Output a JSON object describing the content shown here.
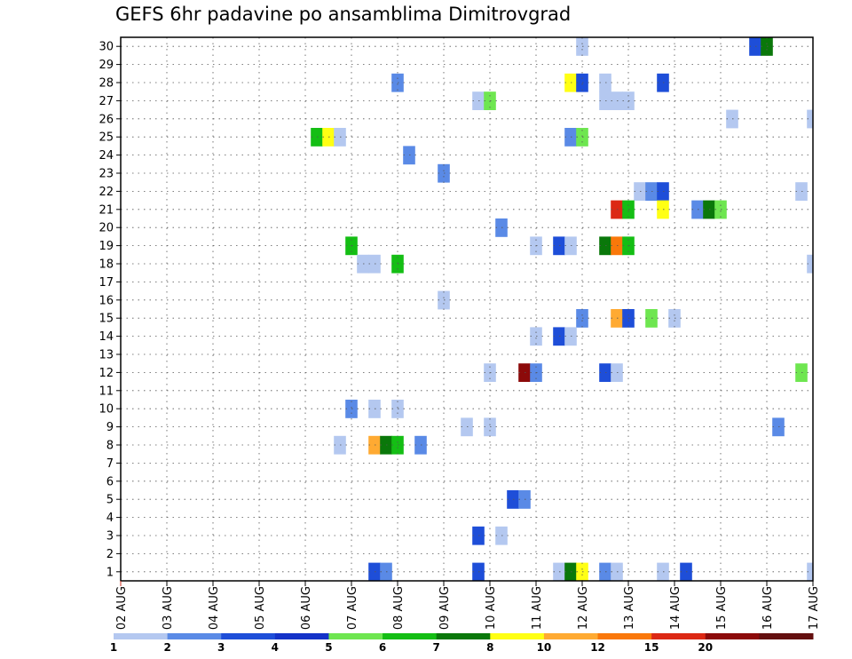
{
  "chart_data": {
    "type": "heatmap",
    "title": "GEFS 6hr padavine po ansamblima Dimitrovgrad",
    "xlabel": "",
    "ylabel": "",
    "x_ticks": [
      "02 AUG",
      "03 AUG",
      "04 AUG",
      "05 AUG",
      "06 AUG",
      "07 AUG",
      "08 AUG",
      "09 AUG",
      "10 AUG",
      "11 AUG",
      "12 AUG",
      "13 AUG",
      "14 AUG",
      "15 AUG",
      "16 AUG",
      "17 AUG"
    ],
    "x_start": "2023-08-02T00",
    "x_end": "2023-08-17T00",
    "y_ticks": [
      "1",
      "2",
      "3",
      "4",
      "5",
      "6",
      "7",
      "8",
      "9",
      "10",
      "11",
      "12",
      "13",
      "14",
      "15",
      "16",
      "17",
      "18",
      "19",
      "20",
      "21",
      "22",
      "23",
      "24",
      "25",
      "26",
      "27",
      "28",
      "29",
      "30"
    ],
    "ylim": [
      1,
      30
    ],
    "grid": true,
    "legend": {
      "placement": "bottom",
      "labels": [
        "1",
        "2",
        "3",
        "4",
        "5",
        "6",
        "7",
        "8",
        "10",
        "12",
        "15",
        "20"
      ],
      "colors": [
        "#b4c8f0",
        "#5a8ae6",
        "#1e4ed8",
        "#1432c8",
        "#6ee650",
        "#14be14",
        "#0a780a",
        "#ffff14",
        "#ffaa32",
        "#fa780a",
        "#dc2814",
        "#8c0a0a",
        "#641010"
      ]
    },
    "cells": [
      {
        "member": 30,
        "time": "2023-08-12T00",
        "color": "#b4c8f0"
      },
      {
        "member": 30,
        "time": "2023-08-15T18",
        "color": "#1e4ed8"
      },
      {
        "member": 30,
        "time": "2023-08-16T00",
        "color": "#0a780a"
      },
      {
        "member": 28,
        "time": "2023-08-08T00",
        "color": "#5a8ae6"
      },
      {
        "member": 28,
        "time": "2023-08-11T18",
        "color": "#ffff14"
      },
      {
        "member": 28,
        "time": "2023-08-12T00",
        "color": "#1e4ed8"
      },
      {
        "member": 28,
        "time": "2023-08-12T12",
        "color": "#b4c8f0"
      },
      {
        "member": 28,
        "time": "2023-08-13T18",
        "color": "#1e4ed8"
      },
      {
        "member": 27,
        "time": "2023-08-09T18",
        "color": "#b4c8f0"
      },
      {
        "member": 27,
        "time": "2023-08-10T00",
        "color": "#6ee650"
      },
      {
        "member": 27,
        "time": "2023-08-12T12",
        "color": "#b4c8f0"
      },
      {
        "member": 27,
        "time": "2023-08-12T18",
        "color": "#b4c8f0"
      },
      {
        "member": 27,
        "time": "2023-08-13T00",
        "color": "#b4c8f0"
      },
      {
        "member": 26,
        "time": "2023-08-15T06",
        "color": "#b4c8f0"
      },
      {
        "member": 26,
        "time": "2023-08-17T00",
        "color": "#b4c8f0"
      },
      {
        "member": 25,
        "time": "2023-08-06T06",
        "color": "#14be14"
      },
      {
        "member": 25,
        "time": "2023-08-06T12",
        "color": "#ffff14"
      },
      {
        "member": 25,
        "time": "2023-08-06T18",
        "color": "#b4c8f0"
      },
      {
        "member": 25,
        "time": "2023-08-11T18",
        "color": "#5a8ae6"
      },
      {
        "member": 25,
        "time": "2023-08-12T00",
        "color": "#6ee650"
      },
      {
        "member": 24,
        "time": "2023-08-08T06",
        "color": "#5a8ae6"
      },
      {
        "member": 23,
        "time": "2023-08-09T00",
        "color": "#5a8ae6"
      },
      {
        "member": 22,
        "time": "2023-08-13T06",
        "color": "#b4c8f0"
      },
      {
        "member": 22,
        "time": "2023-08-13T12",
        "color": "#5a8ae6"
      },
      {
        "member": 22,
        "time": "2023-08-13T18",
        "color": "#1e4ed8"
      },
      {
        "member": 22,
        "time": "2023-08-16T18",
        "color": "#b4c8f0"
      },
      {
        "member": 21,
        "time": "2023-08-12T18",
        "color": "#dc2814"
      },
      {
        "member": 21,
        "time": "2023-08-13T00",
        "color": "#14be14"
      },
      {
        "member": 21,
        "time": "2023-08-13T18",
        "color": "#ffff14"
      },
      {
        "member": 21,
        "time": "2023-08-14T12",
        "color": "#5a8ae6"
      },
      {
        "member": 21,
        "time": "2023-08-14T18",
        "color": "#0a780a"
      },
      {
        "member": 21,
        "time": "2023-08-15T00",
        "color": "#6ee650"
      },
      {
        "member": 20,
        "time": "2023-08-10T06",
        "color": "#5a8ae6"
      },
      {
        "member": 19,
        "time": "2023-08-07T00",
        "color": "#14be14"
      },
      {
        "member": 19,
        "time": "2023-08-11T00",
        "color": "#b4c8f0"
      },
      {
        "member": 19,
        "time": "2023-08-11T12",
        "color": "#1e4ed8"
      },
      {
        "member": 19,
        "time": "2023-08-11T18",
        "color": "#b4c8f0"
      },
      {
        "member": 19,
        "time": "2023-08-12T12",
        "color": "#0a780a"
      },
      {
        "member": 19,
        "time": "2023-08-12T18",
        "color": "#fa780a"
      },
      {
        "member": 19,
        "time": "2023-08-13T00",
        "color": "#14be14"
      },
      {
        "member": 18,
        "time": "2023-08-07T06",
        "color": "#b4c8f0"
      },
      {
        "member": 18,
        "time": "2023-08-07T12",
        "color": "#b4c8f0"
      },
      {
        "member": 18,
        "time": "2023-08-08T00",
        "color": "#14be14"
      },
      {
        "member": 18,
        "time": "2023-08-17T00",
        "color": "#b4c8f0"
      },
      {
        "member": 16,
        "time": "2023-08-09T00",
        "color": "#b4c8f0"
      },
      {
        "member": 15,
        "time": "2023-08-12T00",
        "color": "#5a8ae6"
      },
      {
        "member": 15,
        "time": "2023-08-12T18",
        "color": "#ffaa32"
      },
      {
        "member": 15,
        "time": "2023-08-13T00",
        "color": "#1e4ed8"
      },
      {
        "member": 15,
        "time": "2023-08-13T12",
        "color": "#6ee650"
      },
      {
        "member": 15,
        "time": "2023-08-14T00",
        "color": "#b4c8f0"
      },
      {
        "member": 14,
        "time": "2023-08-11T00",
        "color": "#b4c8f0"
      },
      {
        "member": 14,
        "time": "2023-08-11T12",
        "color": "#1e4ed8"
      },
      {
        "member": 14,
        "time": "2023-08-11T18",
        "color": "#b4c8f0"
      },
      {
        "member": 12,
        "time": "2023-08-10T00",
        "color": "#b4c8f0"
      },
      {
        "member": 12,
        "time": "2023-08-10T18",
        "color": "#8c0a0a"
      },
      {
        "member": 12,
        "time": "2023-08-11T00",
        "color": "#5a8ae6"
      },
      {
        "member": 12,
        "time": "2023-08-12T12",
        "color": "#1e4ed8"
      },
      {
        "member": 12,
        "time": "2023-08-12T18",
        "color": "#b4c8f0"
      },
      {
        "member": 12,
        "time": "2023-08-16T18",
        "color": "#6ee650"
      },
      {
        "member": 10,
        "time": "2023-08-07T00",
        "color": "#5a8ae6"
      },
      {
        "member": 10,
        "time": "2023-08-07T12",
        "color": "#b4c8f0"
      },
      {
        "member": 10,
        "time": "2023-08-08T00",
        "color": "#b4c8f0"
      },
      {
        "member": 9,
        "time": "2023-08-09T12",
        "color": "#b4c8f0"
      },
      {
        "member": 9,
        "time": "2023-08-10T00",
        "color": "#b4c8f0"
      },
      {
        "member": 9,
        "time": "2023-08-16T06",
        "color": "#5a8ae6"
      },
      {
        "member": 8,
        "time": "2023-08-06T18",
        "color": "#b4c8f0"
      },
      {
        "member": 8,
        "time": "2023-08-07T12",
        "color": "#ffaa32"
      },
      {
        "member": 8,
        "time": "2023-08-07T18",
        "color": "#0a780a"
      },
      {
        "member": 8,
        "time": "2023-08-08T00",
        "color": "#14be14"
      },
      {
        "member": 8,
        "time": "2023-08-08T12",
        "color": "#5a8ae6"
      },
      {
        "member": 5,
        "time": "2023-08-10T12",
        "color": "#1e4ed8"
      },
      {
        "member": 5,
        "time": "2023-08-10T18",
        "color": "#5a8ae6"
      },
      {
        "member": 3,
        "time": "2023-08-09T18",
        "color": "#1e4ed8"
      },
      {
        "member": 3,
        "time": "2023-08-10T06",
        "color": "#b4c8f0"
      },
      {
        "member": 1,
        "time": "2023-08-07T12",
        "color": "#1e4ed8"
      },
      {
        "member": 1,
        "time": "2023-08-07T18",
        "color": "#5a8ae6"
      },
      {
        "member": 1,
        "time": "2023-08-09T18",
        "color": "#1e4ed8"
      },
      {
        "member": 1,
        "time": "2023-08-11T12",
        "color": "#b4c8f0"
      },
      {
        "member": 1,
        "time": "2023-08-11T18",
        "color": "#0a780a"
      },
      {
        "member": 1,
        "time": "2023-08-12T00",
        "color": "#ffff14"
      },
      {
        "member": 1,
        "time": "2023-08-12T12",
        "color": "#5a8ae6"
      },
      {
        "member": 1,
        "time": "2023-08-12T18",
        "color": "#b4c8f0"
      },
      {
        "member": 1,
        "time": "2023-08-13T18",
        "color": "#b4c8f0"
      },
      {
        "member": 1,
        "time": "2023-08-14T06",
        "color": "#1e4ed8"
      },
      {
        "member": 1,
        "time": "2023-08-17T00",
        "color": "#b4c8f0"
      }
    ]
  }
}
